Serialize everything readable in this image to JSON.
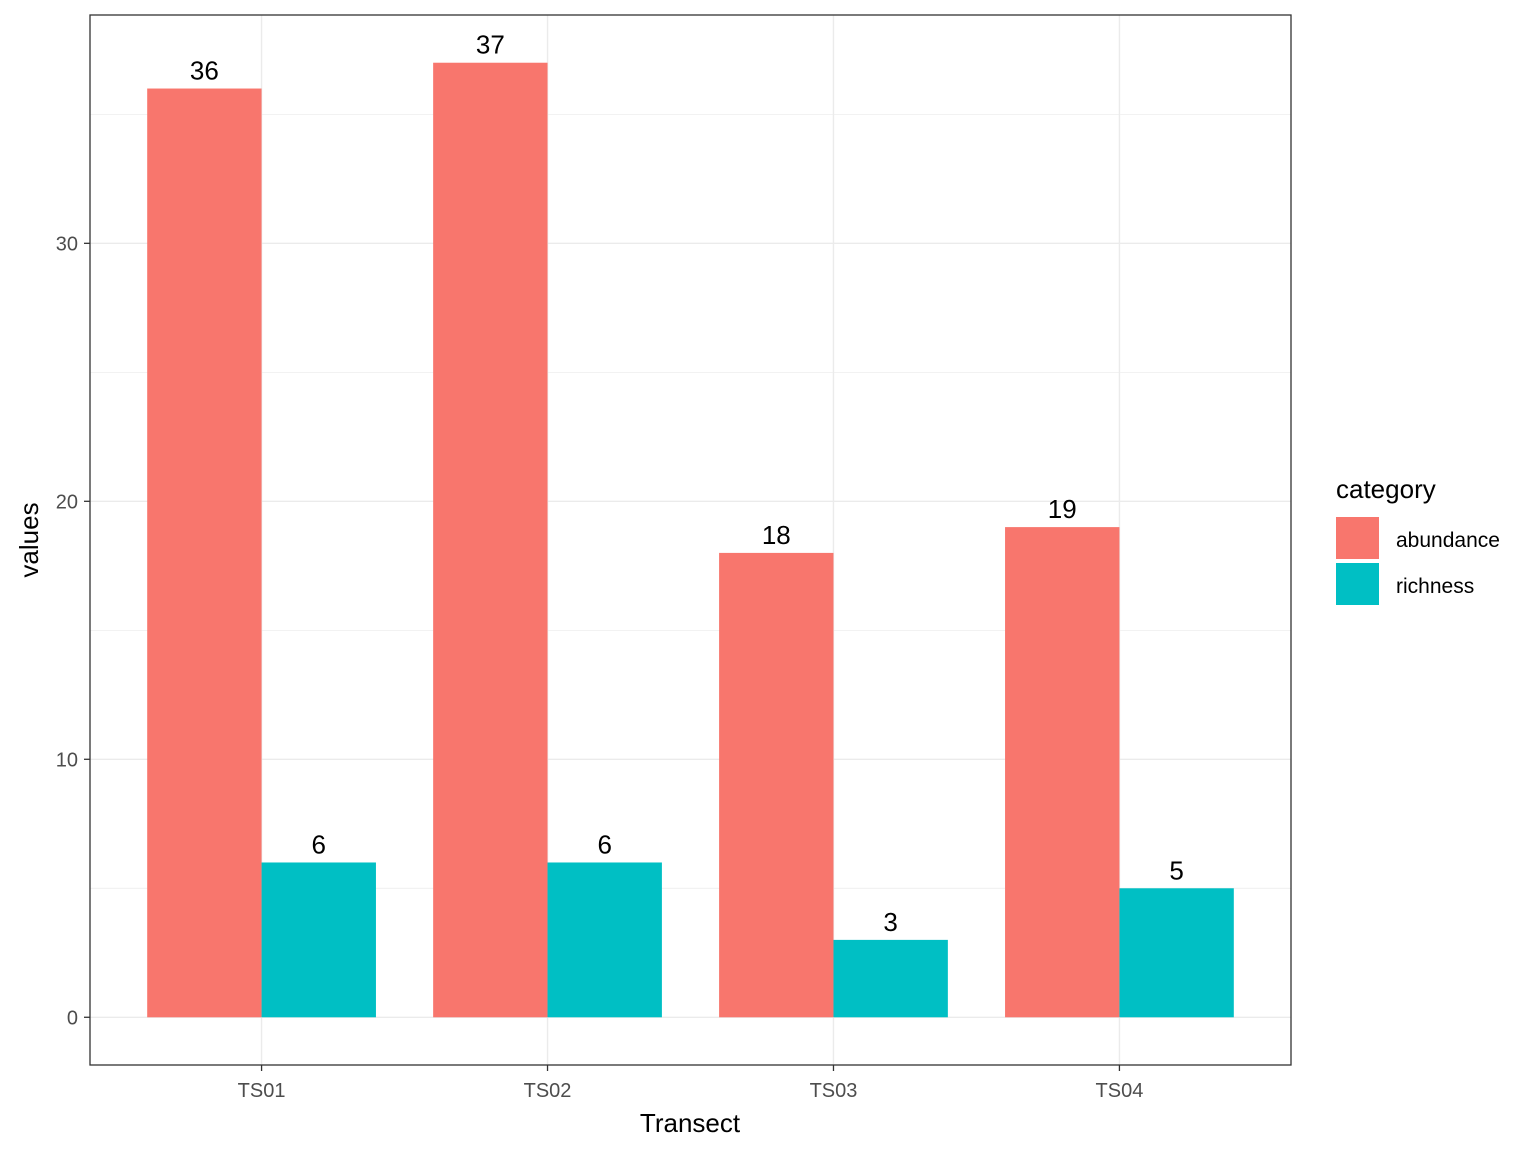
{
  "chart_data": {
    "type": "bar",
    "title": "",
    "xlabel": "Transect",
    "ylabel": "values",
    "categories": [
      "TS01",
      "TS02",
      "TS03",
      "TS04"
    ],
    "series": [
      {
        "name": "abundance",
        "color": "#F8766D",
        "values": [
          36,
          37,
          18,
          19
        ]
      },
      {
        "name": "richness",
        "color": "#00BFC4",
        "values": [
          6,
          6,
          3,
          5
        ]
      }
    ],
    "ylim": [
      -1.85,
      38.85
    ],
    "yticks": [
      0,
      10,
      20,
      30
    ],
    "grid": true,
    "legend": {
      "title": "category",
      "placement": "right"
    }
  }
}
